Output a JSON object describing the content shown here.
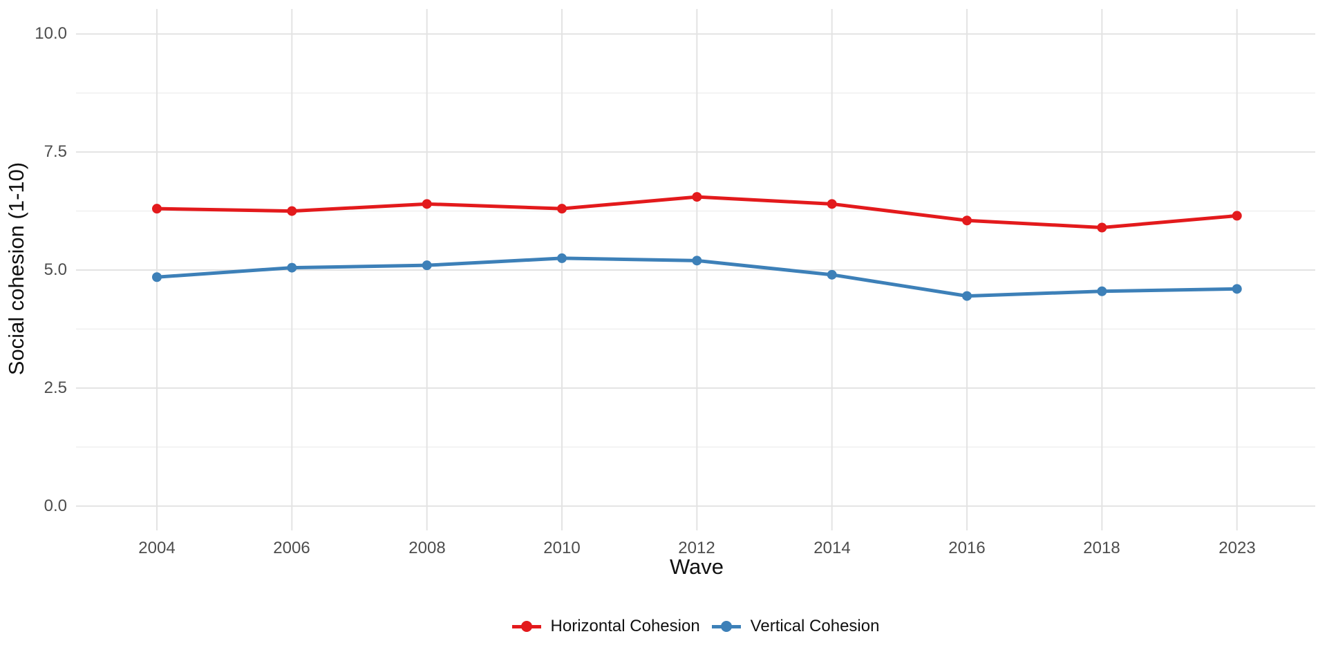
{
  "chart_data": {
    "type": "line",
    "title": "",
    "xlabel": "Wave",
    "ylabel": "Social cohesion (1-10)",
    "categories": [
      "2004",
      "2006",
      "2008",
      "2010",
      "2012",
      "2014",
      "2016",
      "2018",
      "2023"
    ],
    "series": [
      {
        "name": "Horizontal Cohesion",
        "color": "#e31a1c",
        "values": [
          6.3,
          6.25,
          6.4,
          6.3,
          6.55,
          6.4,
          6.05,
          5.9,
          6.15
        ]
      },
      {
        "name": "Vertical Cohesion",
        "color": "#3d80b8",
        "values": [
          4.85,
          5.05,
          5.1,
          5.25,
          5.2,
          4.9,
          4.45,
          4.55,
          4.6
        ]
      }
    ],
    "ylim": [
      0,
      10
    ],
    "y_major_ticks": [
      0,
      2.5,
      5,
      7.5,
      10
    ],
    "y_tick_labels": [
      "0.0",
      "2.5",
      "5.0",
      "7.5",
      "10.0"
    ],
    "y_minor_ticks": [
      1.25,
      3.75,
      6.25,
      8.75
    ],
    "grid": "major-and-minor horizontal, major vertical per category",
    "legend_position": "bottom",
    "colors": {
      "major_grid": "#e3e3e3",
      "minor_grid": "#efefef",
      "tick_text": "#4d4d4d",
      "title_text": "#111111",
      "background": "#ffffff"
    }
  }
}
